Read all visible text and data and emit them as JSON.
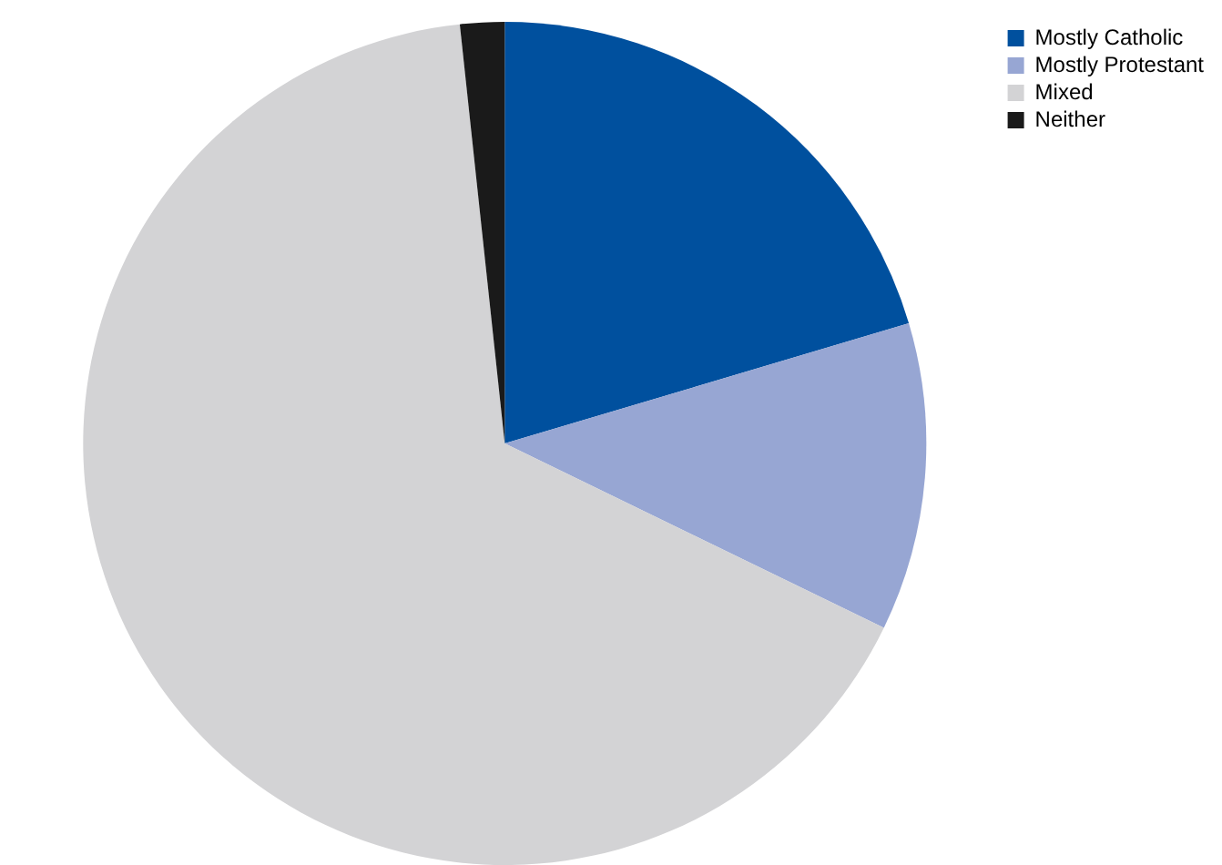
{
  "chart_data": {
    "type": "pie",
    "categories": [
      "Mostly Catholic",
      "Mostly Protestant",
      "Mixed",
      "Neither"
    ],
    "values": [
      20.4,
      11.8,
      66.1,
      1.7
    ],
    "colors": [
      "#00509e",
      "#97a6d3",
      "#d3d3d5",
      "#1a1a1a"
    ],
    "legend": "top right"
  }
}
